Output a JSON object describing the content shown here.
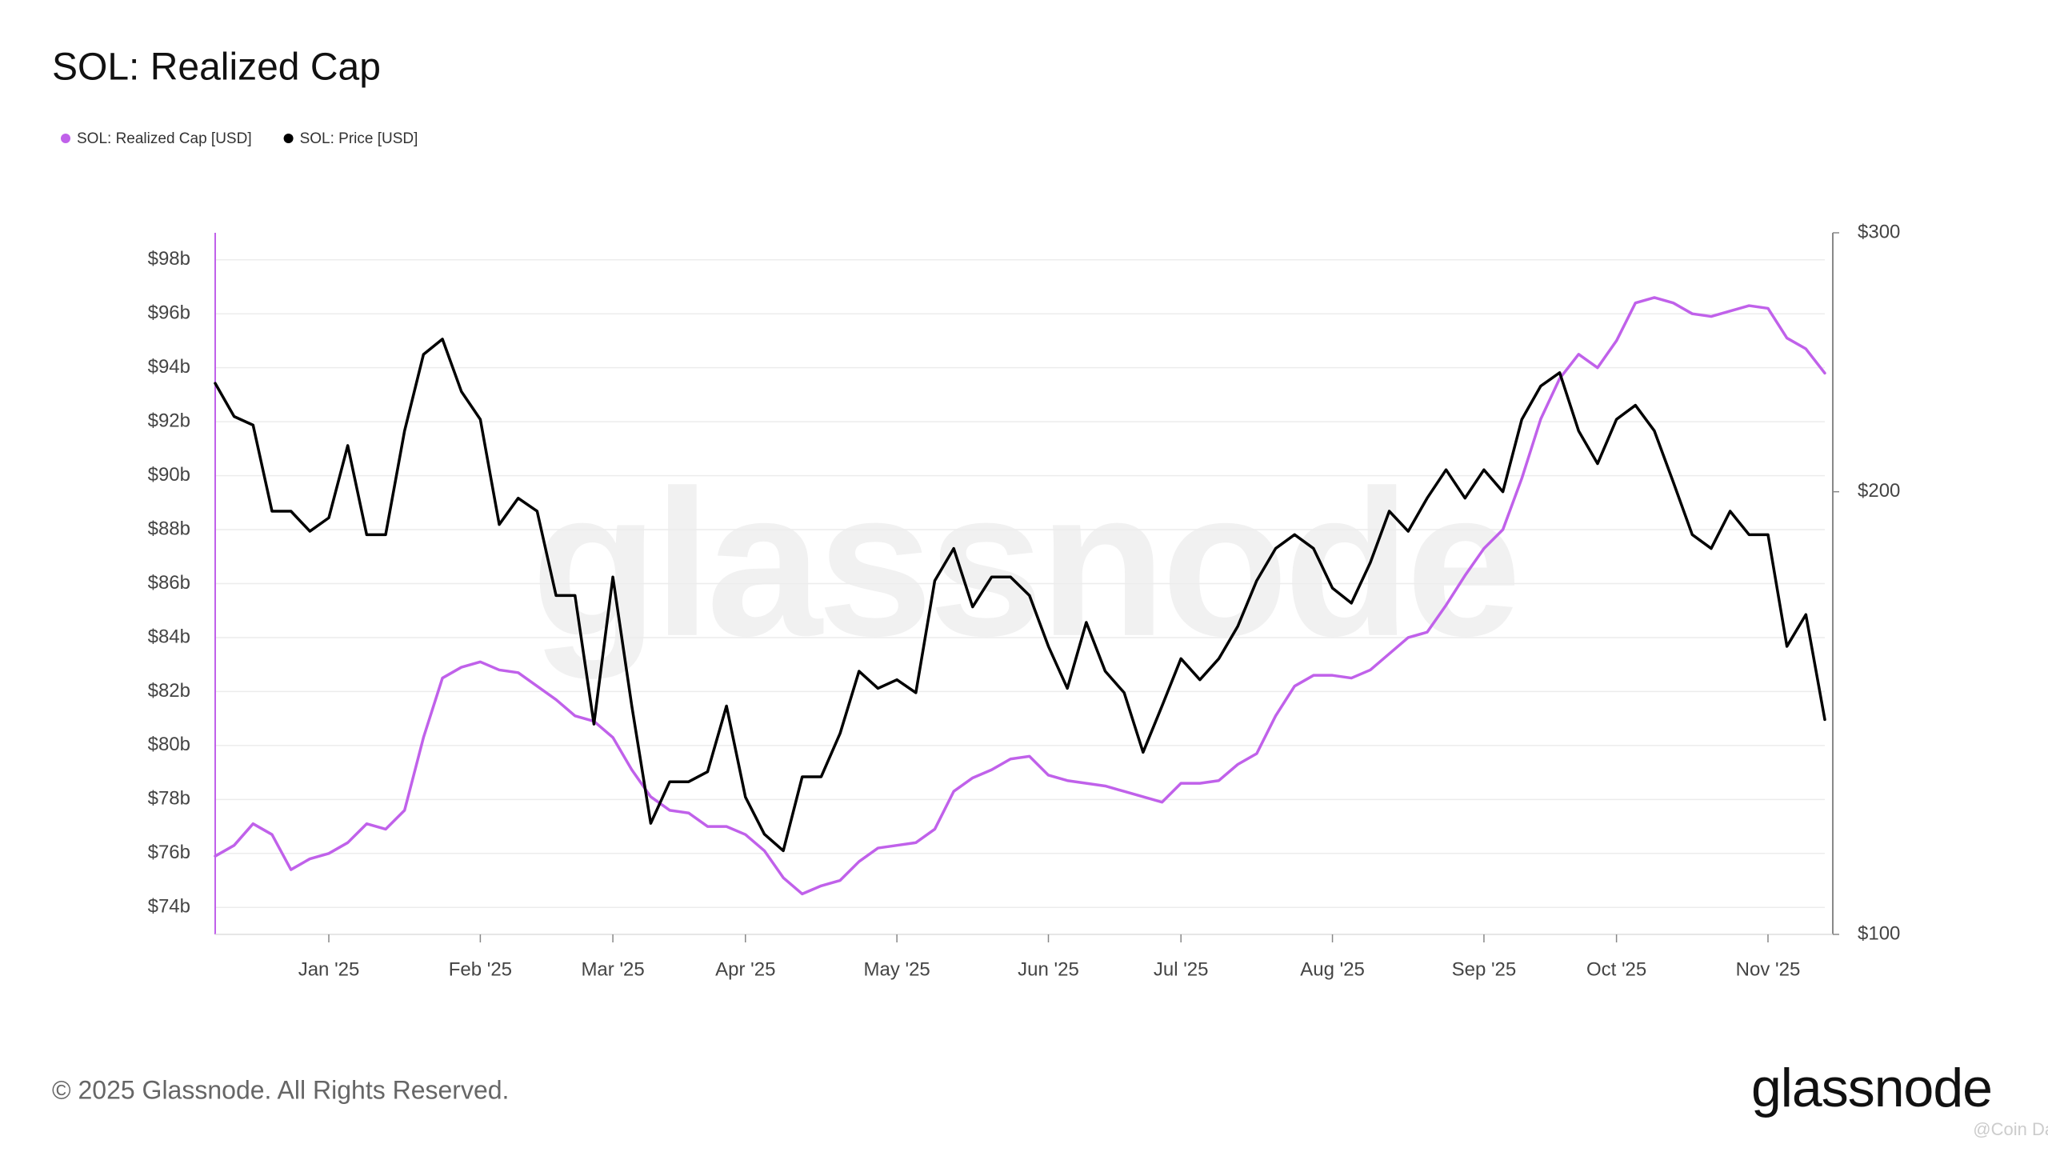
{
  "chart_data": {
    "type": "line",
    "title": "SOL: Realized Cap",
    "brand": "glassnode",
    "copyright": "© 2025 Glassnode. All Rights Reserved.",
    "overlay_watermark": "@Coin Daisy",
    "categories": [
      null,
      null,
      null,
      null,
      null,
      null,
      "Jan '25",
      null,
      null,
      null,
      null,
      null,
      null,
      null,
      "Feb '25",
      null,
      null,
      null,
      null,
      null,
      null,
      "Mar '25",
      null,
      null,
      null,
      null,
      null,
      null,
      "Apr '25",
      null,
      null,
      null,
      null,
      null,
      null,
      null,
      "May '25",
      null,
      null,
      null,
      null,
      null,
      null,
      null,
      "Jun '25",
      null,
      null,
      null,
      null,
      null,
      null,
      "Jul '25",
      null,
      null,
      null,
      null,
      null,
      null,
      null,
      "Aug '25",
      null,
      null,
      null,
      null,
      null,
      null,
      null,
      "Sep '25",
      null,
      null,
      null,
      null,
      null,
      null,
      "Oct '25",
      null,
      null,
      null,
      null,
      null,
      null,
      null,
      "Nov '25",
      null,
      null,
      null
    ],
    "series": [
      {
        "name": "SOL: Realized Cap [USD]",
        "color": "#c061ea",
        "axis": "y",
        "values": [
          75.9,
          76.3,
          77.1,
          76.7,
          75.4,
          75.8,
          76.0,
          76.4,
          77.1,
          76.9,
          77.6,
          80.3,
          82.5,
          82.9,
          83.1,
          82.8,
          82.7,
          82.2,
          81.7,
          81.1,
          80.9,
          80.3,
          79.1,
          78.1,
          77.6,
          77.5,
          77.0,
          77.0,
          76.7,
          76.1,
          75.1,
          74.5,
          74.8,
          75.0,
          75.7,
          76.2,
          76.3,
          76.4,
          76.9,
          78.3,
          78.8,
          79.1,
          79.5,
          79.6,
          78.9,
          78.7,
          78.6,
          78.5,
          78.3,
          78.1,
          77.9,
          78.6,
          78.6,
          78.7,
          79.3,
          79.7,
          81.1,
          82.2,
          82.6,
          82.6,
          82.5,
          82.8,
          83.4,
          84.0,
          84.2,
          85.2,
          86.3,
          87.3,
          88.0,
          89.9,
          92.1,
          93.6,
          94.5,
          94.0,
          95.0,
          96.4,
          96.6,
          96.4,
          96.0,
          95.9,
          96.1,
          96.3,
          96.2,
          95.1,
          94.7,
          93.8
        ]
      },
      {
        "name": "SOL: Price [USD]",
        "color": "#000000",
        "axis": "y2",
        "values": [
          237,
          225,
          222,
          194,
          194,
          188,
          192,
          215,
          187,
          187,
          220,
          248,
          254,
          234,
          224,
          190,
          198,
          194,
          170,
          170,
          139,
          175,
          143,
          119,
          127,
          127,
          129,
          143,
          124,
          117,
          114,
          128,
          128,
          137,
          151,
          147,
          149,
          146,
          174,
          183,
          167,
          175,
          175,
          170,
          157,
          147,
          163,
          151,
          146,
          133,
          143,
          154,
          149,
          154,
          162,
          174,
          183,
          187,
          183,
          172,
          168,
          179,
          194,
          188,
          198,
          207,
          198,
          207,
          200,
          224,
          236,
          241,
          220,
          209,
          224,
          229,
          220,
          203,
          187,
          183,
          194,
          187,
          187,
          157,
          165,
          140
        ]
      }
    ],
    "ylim": [
      73,
      99
    ],
    "yticks": [
      {
        "value": 74,
        "label": "$74b"
      },
      {
        "value": 76,
        "label": "$76b"
      },
      {
        "value": 78,
        "label": "$78b"
      },
      {
        "value": 80,
        "label": "$80b"
      },
      {
        "value": 82,
        "label": "$82b"
      },
      {
        "value": 84,
        "label": "$84b"
      },
      {
        "value": 86,
        "label": "$86b"
      },
      {
        "value": 88,
        "label": "$88b"
      },
      {
        "value": 90,
        "label": "$90b"
      },
      {
        "value": 92,
        "label": "$92b"
      },
      {
        "value": 94,
        "label": "$94b"
      },
      {
        "value": 96,
        "label": "$96b"
      },
      {
        "value": 98,
        "label": "$98b"
      }
    ],
    "y2lim": [
      100,
      300
    ],
    "y2ticks": [
      {
        "value": 100,
        "label": "$100"
      },
      {
        "value": 200,
        "label": "$200"
      },
      {
        "value": 300,
        "label": "$300"
      }
    ],
    "y2scale": "log",
    "grid": true,
    "legend": "top-left"
  }
}
